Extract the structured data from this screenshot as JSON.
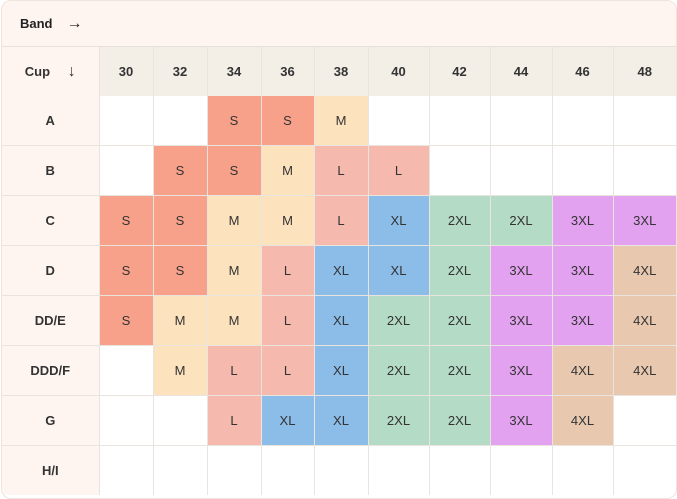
{
  "header": {
    "band_label": "Band",
    "band_arrow": "→"
  },
  "table": {
    "cup_label": "Cup",
    "cup_arrow": "↓",
    "band_sizes": [
      "30",
      "32",
      "34",
      "36",
      "38",
      "40",
      "42",
      "44",
      "46",
      "48"
    ],
    "rows": [
      {
        "cup": "A",
        "cells": [
          "",
          "",
          "S",
          "S",
          "M",
          "",
          "",
          "",
          "",
          ""
        ]
      },
      {
        "cup": "B",
        "cells": [
          "",
          "S",
          "S",
          "M",
          "L",
          "L",
          "",
          "",
          "",
          ""
        ]
      },
      {
        "cup": "C",
        "cells": [
          "S",
          "S",
          "M",
          "M",
          "L",
          "XL",
          "2XL",
          "2XL",
          "3XL",
          "3XL"
        ]
      },
      {
        "cup": "D",
        "cells": [
          "S",
          "S",
          "M",
          "L",
          "XL",
          "XL",
          "2XL",
          "3XL",
          "3XL",
          "4XL"
        ]
      },
      {
        "cup": "DD/E",
        "cells": [
          "S",
          "M",
          "M",
          "L",
          "XL",
          "2XL",
          "2XL",
          "3XL",
          "3XL",
          "4XL"
        ]
      },
      {
        "cup": "DDD/F",
        "cells": [
          "",
          "M",
          "L",
          "L",
          "XL",
          "2XL",
          "2XL",
          "3XL",
          "4XL",
          "4XL"
        ]
      },
      {
        "cup": "G",
        "cells": [
          "",
          "",
          "L",
          "XL",
          "XL",
          "2XL",
          "2XL",
          "3XL",
          "4XL",
          ""
        ]
      },
      {
        "cup": "H/I",
        "cells": [
          "",
          "",
          "",
          "",
          "",
          "",
          "",
          "",
          "",
          ""
        ]
      }
    ]
  },
  "size_colors": {
    "S": "#f7a08a",
    "M": "#fde3bd",
    "L": "#f5b9ae",
    "XL": "#8cbce8",
    "2XL": "#b4dbc6",
    "3XL": "#e3a2f0",
    "4XL": "#e8c9b0"
  }
}
